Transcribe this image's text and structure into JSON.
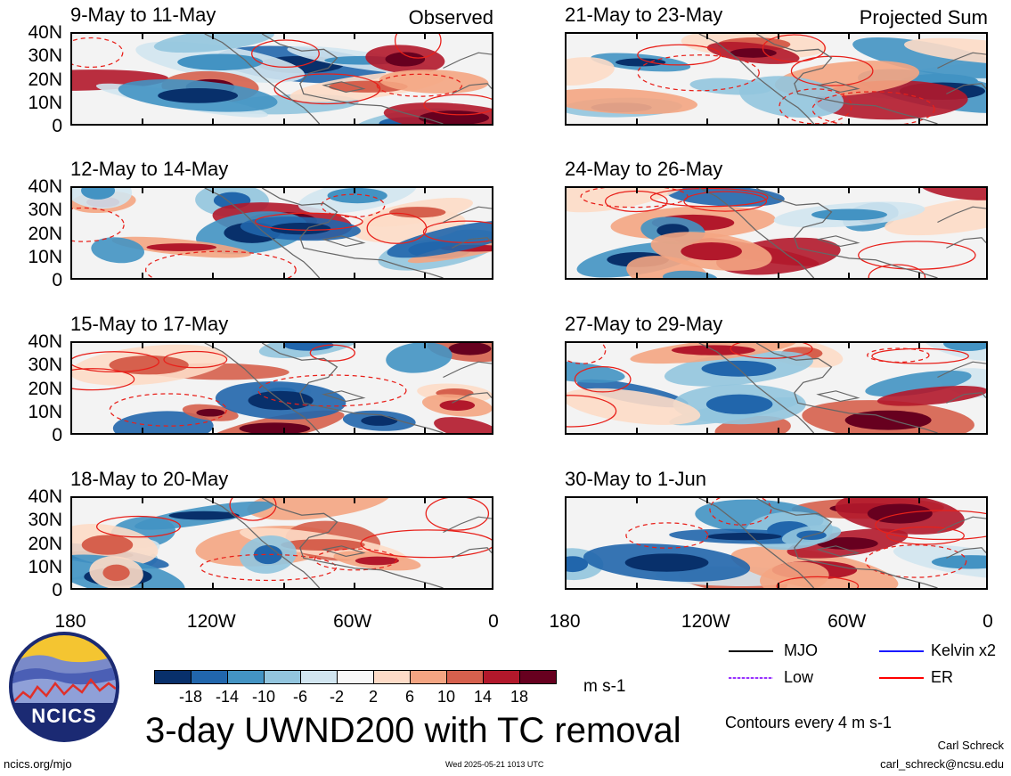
{
  "panels": [
    {
      "title": "9-May to 11-May",
      "tag": "Observed",
      "seed": 1
    },
    {
      "title": "12-May to 14-May",
      "tag": "",
      "seed": 2
    },
    {
      "title": "15-May to 17-May",
      "tag": "",
      "seed": 3
    },
    {
      "title": "18-May to 20-May",
      "tag": "",
      "seed": 4
    },
    {
      "title": "21-May to 23-May",
      "tag": "Projected Sum",
      "seed": 5
    },
    {
      "title": "24-May to 26-May",
      "tag": "",
      "seed": 6
    },
    {
      "title": "27-May to 29-May",
      "tag": "",
      "seed": 7
    },
    {
      "title": "30-May to 1-Jun",
      "tag": "",
      "seed": 8
    }
  ],
  "lat_labels": [
    "40N",
    "30N",
    "20N",
    "10N",
    "0"
  ],
  "lon_labels": [
    "180",
    "120W",
    "60W",
    "0"
  ],
  "colorbar": {
    "labels": [
      "-18",
      "-14",
      "-10",
      "-6",
      "-2",
      "2",
      "6",
      "10",
      "14",
      "18"
    ],
    "colors": [
      "#08306b",
      "#2166ac",
      "#4393c3",
      "#92c5de",
      "#d1e5f0",
      "#f7f7f7",
      "#fddbc7",
      "#f4a582",
      "#d6604d",
      "#b2182b",
      "#67001f"
    ],
    "units": "m s-1"
  },
  "legend": {
    "mjo": {
      "label": "MJO",
      "color": "#000000"
    },
    "kelvin": {
      "label": "Kelvin x2",
      "color": "#1a1aff"
    },
    "low": {
      "label": "Low",
      "color": "#9933ff"
    },
    "er": {
      "label": "ER",
      "color": "#ff0000"
    }
  },
  "contour_note": "Contours every 4 m s-1",
  "main_title": "3-day UWND200 with TC removal",
  "logo_text": "NCICS",
  "footer": {
    "url": "ncics.org/mjo",
    "date": "Wed 2025-05-21 1013 UTC",
    "author": "Carl Schreck",
    "email": "carl_schreck@ncsu.edu"
  }
}
